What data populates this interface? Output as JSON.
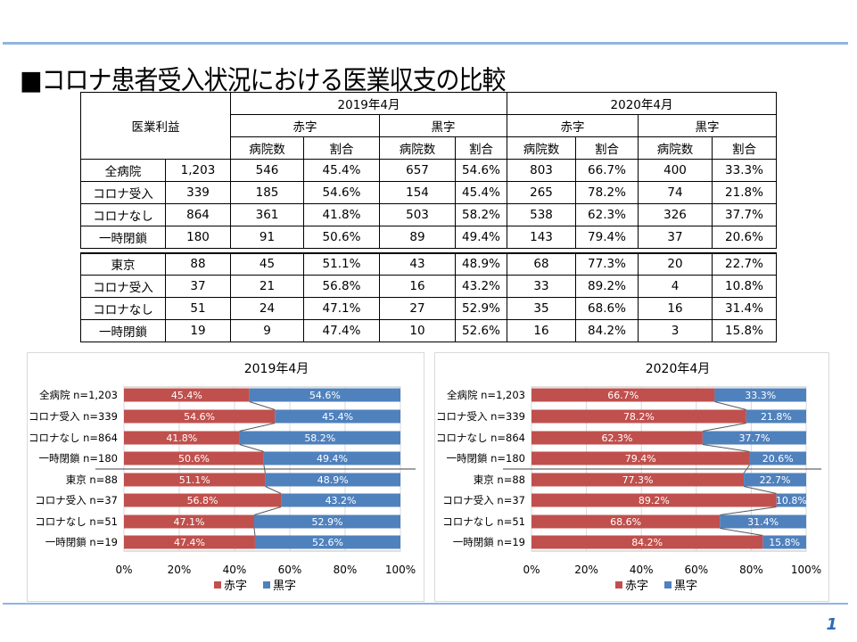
{
  "title": "■コロナ患者受入状況における医業収支の比較",
  "page_number": "1",
  "table": {
    "corner": "医業利益",
    "periods": [
      "2019年4月",
      "2020年4月"
    ],
    "groups": [
      "赤字",
      "黒字",
      "赤字",
      "黒字"
    ],
    "subcols": [
      "病院数",
      "割合",
      "病院数",
      "割合",
      "病院数",
      "割合",
      "病院数",
      "割合"
    ],
    "rows": [
      [
        "全病院",
        "1,203",
        "546",
        "45.4%",
        "657",
        "54.6%",
        "803",
        "66.7%",
        "400",
        "33.3%"
      ],
      [
        "コロナ受入",
        "339",
        "185",
        "54.6%",
        "154",
        "45.4%",
        "265",
        "78.2%",
        "74",
        "21.8%"
      ],
      [
        "コロナなし",
        "864",
        "361",
        "41.8%",
        "503",
        "58.2%",
        "538",
        "62.3%",
        "326",
        "37.7%"
      ],
      [
        "一時閉鎖",
        "180",
        "91",
        "50.6%",
        "89",
        "49.4%",
        "143",
        "79.4%",
        "37",
        "20.6%"
      ],
      [
        "東京",
        "88",
        "45",
        "51.1%",
        "43",
        "48.9%",
        "68",
        "77.3%",
        "20",
        "22.7%"
      ],
      [
        "コロナ受入",
        "37",
        "21",
        "56.8%",
        "16",
        "43.2%",
        "33",
        "89.2%",
        "4",
        "10.8%"
      ],
      [
        "コロナなし",
        "51",
        "24",
        "47.1%",
        "27",
        "52.9%",
        "35",
        "68.6%",
        "16",
        "31.4%"
      ],
      [
        "一時閉鎖",
        "19",
        "9",
        "47.4%",
        "10",
        "52.6%",
        "16",
        "84.2%",
        "3",
        "15.8%"
      ]
    ]
  },
  "colors": {
    "red": "#c0504d",
    "blue": "#4f81bd",
    "rule": "#8fb4e3"
  },
  "chart_data": [
    {
      "type": "bar",
      "stacked": "100%",
      "orientation": "horizontal",
      "title": "2019年4月",
      "categories": [
        "全病院 n=1,203",
        "コロナ受入 n=339",
        "コロナなし n=864",
        "一時閉鎖 n=180",
        "東京 n=88",
        "コロナ受入 n=37",
        "コロナなし n=51",
        "一時閉鎖 n=19"
      ],
      "series": [
        {
          "name": "赤字",
          "values": [
            45.4,
            54.6,
            41.8,
            50.6,
            51.1,
            56.8,
            47.1,
            47.4
          ]
        },
        {
          "name": "黒字",
          "values": [
            54.6,
            45.4,
            58.2,
            49.4,
            48.9,
            43.2,
            52.9,
            52.6
          ]
        }
      ],
      "xticks": [
        "0%",
        "20%",
        "40%",
        "60%",
        "80%",
        "100%"
      ],
      "xlim": [
        0,
        100
      ],
      "grid": true,
      "legend": "bottom"
    },
    {
      "type": "bar",
      "stacked": "100%",
      "orientation": "horizontal",
      "title": "2020年4月",
      "categories": [
        "全病院 n=1,203",
        "コロナ受入 n=339",
        "コロナなし n=864",
        "一時閉鎖 n=180",
        "東京 n=88",
        "コロナ受入 n=37",
        "コロナなし n=51",
        "一時閉鎖 n=19"
      ],
      "series": [
        {
          "name": "赤字",
          "values": [
            66.7,
            78.2,
            62.3,
            79.4,
            77.3,
            89.2,
            68.6,
            84.2
          ]
        },
        {
          "name": "黒字",
          "values": [
            33.3,
            21.8,
            37.7,
            20.6,
            22.7,
            10.8,
            31.4,
            15.8
          ]
        }
      ],
      "xticks": [
        "0%",
        "20%",
        "40%",
        "60%",
        "80%",
        "100%"
      ],
      "xlim": [
        0,
        100
      ],
      "grid": true,
      "legend": "bottom"
    }
  ]
}
